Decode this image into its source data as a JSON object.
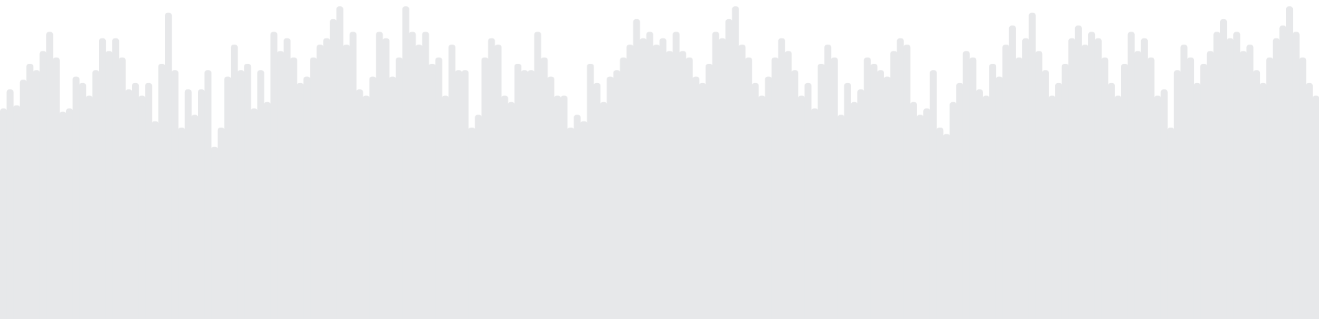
{
  "waveform": {
    "fill_color": "#e7e8ea",
    "background_color": "#ffffff",
    "peak_levels": [
      0.34,
      0.28,
      0.33,
      0.25,
      0.2,
      0.22,
      0.16,
      0.1,
      0.18,
      0.35,
      0.34,
      0.24,
      0.26,
      0.3,
      0.22,
      0.12,
      0.16,
      0.12,
      0.18,
      0.28,
      0.26,
      0.3,
      0.26,
      0.38,
      0.2,
      0.04,
      0.22,
      0.4,
      0.28,
      0.36,
      0.28,
      0.22,
      0.46,
      0.4,
      0.24,
      0.14,
      0.22,
      0.2,
      0.34,
      0.22,
      0.32,
      0.1,
      0.16,
      0.12,
      0.18,
      0.26,
      0.24,
      0.18,
      0.14,
      0.12,
      0.06,
      0.02,
      0.14,
      0.1,
      0.28,
      0.3,
      0.24,
      0.1,
      0.12,
      0.24,
      0.18,
      0.02,
      0.1,
      0.14,
      0.1,
      0.2,
      0.18,
      0.3,
      0.14,
      0.22,
      0.22,
      0.4,
      0.36,
      0.18,
      0.12,
      0.14,
      0.3,
      0.32,
      0.2,
      0.22,
      0.22,
      0.1,
      0.18,
      0.24,
      0.3,
      0.3,
      0.4,
      0.36,
      0.38,
      0.2,
      0.26,
      0.32,
      0.24,
      0.22,
      0.18,
      0.14,
      0.06,
      0.12,
      0.1,
      0.14,
      0.12,
      0.16,
      0.1,
      0.16,
      0.18,
      0.24,
      0.26,
      0.2,
      0.1,
      0.12,
      0.06,
      0.02,
      0.14,
      0.18,
      0.26,
      0.3,
      0.24,
      0.18,
      0.12,
      0.16,
      0.22,
      0.3,
      0.26,
      0.34,
      0.2,
      0.14,
      0.18,
      0.36,
      0.26,
      0.32,
      0.28,
      0.18,
      0.2,
      0.22,
      0.24,
      0.16,
      0.12,
      0.14,
      0.32,
      0.36,
      0.34,
      0.22,
      0.4,
      0.42,
      0.32,
      0.26,
      0.16,
      0.18,
      0.28,
      0.3,
      0.2,
      0.24,
      0.14,
      0.08,
      0.18,
      0.12,
      0.04,
      0.16,
      0.22,
      0.3,
      0.26,
      0.2,
      0.12,
      0.08,
      0.14,
      0.1,
      0.12,
      0.18,
      0.26,
      0.3,
      0.2,
      0.1,
      0.16,
      0.12,
      0.18,
      0.3,
      0.28,
      0.4,
      0.22,
      0.14,
      0.18,
      0.26,
      0.2,
      0.16,
      0.1,
      0.06,
      0.12,
      0.1,
      0.16,
      0.14,
      0.22,
      0.26,
      0.18,
      0.12,
      0.08,
      0.02,
      0.1,
      0.18,
      0.26,
      0.3
    ]
  }
}
